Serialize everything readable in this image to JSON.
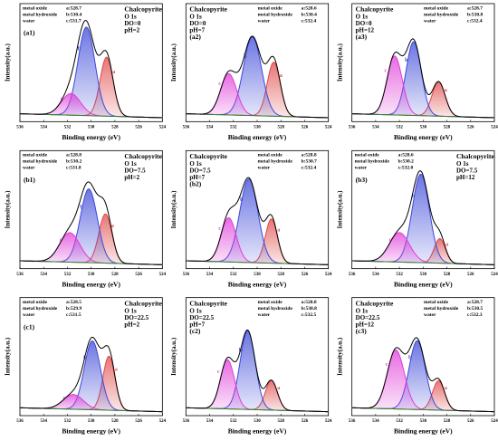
{
  "chart_data": [
    {
      "type": "xps",
      "panel": "(a1)",
      "title": "Chalcopyrite",
      "conditions": [
        "O 1s",
        "DO=0",
        "pH=2"
      ],
      "title_corner": "right",
      "xlabel": "Binding energy (eV)",
      "ylabel": "Intensity(a.u.)",
      "xlim": [
        536,
        524
      ],
      "xticks": [
        536,
        534,
        532,
        530,
        528,
        526,
        524
      ],
      "ylim": [
        0,
        1.2
      ],
      "baseline": [
        0.08,
        0.04
      ],
      "series": [
        {
          "name": "a",
          "species": "metal oxide",
          "label": "a:528.7",
          "center": 528.7,
          "height": 0.6,
          "fwhm": 1.3,
          "color": "#e04848"
        },
        {
          "name": "b",
          "species": "metal hydroxide",
          "label": "b:530.4",
          "center": 530.4,
          "height": 0.9,
          "fwhm": 1.7,
          "color": "#3c48d8"
        },
        {
          "name": "c",
          "species": "water",
          "label": "c:531.7",
          "center": 531.7,
          "height": 0.22,
          "fwhm": 1.9,
          "color": "#e03cd8"
        }
      ]
    },
    {
      "type": "xps",
      "panel": "(a2)",
      "title": "Chalcopyrite",
      "conditions": [
        "O 1s",
        "DO=0",
        "pH=7"
      ],
      "title_corner": "left",
      "xlabel": "Binding energy (eV)",
      "ylabel": "Intensity(a.u.)",
      "xlim": [
        536,
        524
      ],
      "xticks": [
        536,
        534,
        532,
        530,
        528,
        526,
        524
      ],
      "ylim": [
        0,
        1.2
      ],
      "baseline": [
        0.08,
        0.04
      ],
      "series": [
        {
          "name": "a",
          "species": "metal oxide",
          "label": "a:528.6",
          "center": 528.6,
          "height": 0.55,
          "fwhm": 1.3,
          "color": "#e04848"
        },
        {
          "name": "b",
          "species": "metal hydroxide",
          "label": "b:530.4",
          "center": 530.4,
          "height": 0.8,
          "fwhm": 1.8,
          "color": "#3c48d8"
        },
        {
          "name": "c",
          "species": "water",
          "label": "c:532.4",
          "center": 532.4,
          "height": 0.42,
          "fwhm": 1.6,
          "color": "#e03cd8"
        }
      ]
    },
    {
      "type": "xps",
      "panel": "(a3)",
      "title": "Chalcopyrite",
      "conditions": [
        "O 1s",
        "DO=0",
        "pH=12"
      ],
      "title_corner": "left",
      "xlabel": "Binding energy (eV)",
      "ylabel": "Intensity(a.u.)",
      "xlim": [
        536,
        524
      ],
      "xticks": [
        536,
        534,
        532,
        530,
        528,
        526,
        524
      ],
      "ylim": [
        0,
        1.2
      ],
      "baseline": [
        0.08,
        0.04
      ],
      "series": [
        {
          "name": "a",
          "species": "metal oxide",
          "label": "a:528.7",
          "center": 528.7,
          "height": 0.35,
          "fwhm": 1.3,
          "color": "#e04848"
        },
        {
          "name": "b",
          "species": "metal hydroxide",
          "label": "b:530.8",
          "center": 530.8,
          "height": 0.75,
          "fwhm": 1.5,
          "color": "#3c48d8"
        },
        {
          "name": "c",
          "species": "water",
          "label": "c:532.4",
          "center": 532.4,
          "height": 0.6,
          "fwhm": 1.5,
          "color": "#e03cd8"
        }
      ]
    },
    {
      "type": "xps",
      "panel": "(b1)",
      "title": "Chalcopyrite",
      "conditions": [
        "O 1s",
        "DO=7.5",
        "pH=2"
      ],
      "title_corner": "right",
      "xlabel": "Binding energy (eV)",
      "ylabel": "Intensity(a.u.)",
      "xlim": [
        536,
        524
      ],
      "xticks": [
        536,
        534,
        532,
        530,
        528,
        526,
        524
      ],
      "ylim": [
        0,
        1.2
      ],
      "baseline": [
        0.08,
        0.04
      ],
      "series": [
        {
          "name": "a",
          "species": "metal oxide",
          "label": "a:528.8",
          "center": 528.8,
          "height": 0.5,
          "fwhm": 1.3,
          "color": "#e04848"
        },
        {
          "name": "b",
          "species": "metal hydroxide",
          "label": "b:530.2",
          "center": 530.2,
          "height": 0.75,
          "fwhm": 1.7,
          "color": "#3c48d8"
        },
        {
          "name": "c",
          "species": "water",
          "label": "c:531.8",
          "center": 531.8,
          "height": 0.3,
          "fwhm": 2.0,
          "color": "#e03cd8"
        }
      ]
    },
    {
      "type": "xps",
      "panel": "(b2)",
      "title": "Chalcopyrite",
      "conditions": [
        "O 1s",
        "DO=7.5",
        "pH=7"
      ],
      "title_corner": "left",
      "xlabel": "Binding energy (eV)",
      "ylabel": "Intensity(a.u.)",
      "xlim": [
        536,
        524
      ],
      "xticks": [
        536,
        534,
        532,
        530,
        528,
        526,
        524
      ],
      "ylim": [
        0,
        1.2
      ],
      "baseline": [
        0.08,
        0.04
      ],
      "series": [
        {
          "name": "a",
          "species": "metal oxide",
          "label": "a:528.8",
          "center": 528.8,
          "height": 0.45,
          "fwhm": 1.2,
          "color": "#e04848"
        },
        {
          "name": "b",
          "species": "metal hydroxide",
          "label": "b:530.7",
          "center": 530.7,
          "height": 0.85,
          "fwhm": 1.8,
          "color": "#3c48d8"
        },
        {
          "name": "c",
          "species": "water",
          "label": "c:532.4",
          "center": 532.4,
          "height": 0.45,
          "fwhm": 1.5,
          "color": "#e03cd8"
        }
      ]
    },
    {
      "type": "xps",
      "panel": "(b3)",
      "title": "Chalcopyrite",
      "conditions": [
        "O 1s",
        "DO=7.5",
        "pH=12"
      ],
      "title_corner": "right",
      "xlabel": "Binding energy (eV)",
      "ylabel": "Intensity(a.u.)",
      "xlim": [
        536,
        524
      ],
      "xticks": [
        536,
        534,
        532,
        530,
        528,
        526,
        524
      ],
      "ylim": [
        0,
        1.2
      ],
      "baseline": [
        0.08,
        0.04
      ],
      "series": [
        {
          "name": "a",
          "species": "metal oxide",
          "label": "a:528.6",
          "center": 528.6,
          "height": 0.25,
          "fwhm": 1.1,
          "color": "#e04848"
        },
        {
          "name": "b",
          "species": "metal hydroxide",
          "label": "b:530.2",
          "center": 530.2,
          "height": 0.9,
          "fwhm": 1.7,
          "color": "#3c48d8"
        },
        {
          "name": "c",
          "species": "water",
          "label": "c:532.0",
          "center": 532.0,
          "height": 0.3,
          "fwhm": 2.0,
          "color": "#e03cd8"
        }
      ]
    },
    {
      "type": "xps",
      "panel": "(c1)",
      "title": "Chalcopyrite",
      "conditions": [
        "O 1s",
        "DO=22.5",
        "pH=2"
      ],
      "title_corner": "right",
      "xlabel": "Binding energy (eV)",
      "ylabel": "Intensity(a.u.)",
      "xlim": [
        536,
        524
      ],
      "xticks": [
        536,
        534,
        532,
        530,
        528,
        526,
        524
      ],
      "ylim": [
        0,
        1.2
      ],
      "baseline": [
        0.08,
        0.04
      ],
      "series": [
        {
          "name": "a",
          "species": "metal oxide",
          "label": "a:528.5",
          "center": 528.5,
          "height": 0.55,
          "fwhm": 1.2,
          "color": "#e04848"
        },
        {
          "name": "b",
          "species": "metal hydroxide",
          "label": "b:529.9",
          "center": 529.9,
          "height": 0.7,
          "fwhm": 1.6,
          "color": "#3c48d8"
        },
        {
          "name": "c",
          "species": "water",
          "label": "c:531.5",
          "center": 531.5,
          "height": 0.15,
          "fwhm": 2.0,
          "color": "#e03cd8"
        }
      ]
    },
    {
      "type": "xps",
      "panel": "(c2)",
      "title": "Chalcopyrite",
      "conditions": [
        "O 1s",
        "DO=22.5",
        "pH=7"
      ],
      "title_corner": "left",
      "xlabel": "Binding energy (eV)",
      "ylabel": "Intensity(a.u.)",
      "xlim": [
        536,
        524
      ],
      "xticks": [
        536,
        534,
        532,
        530,
        528,
        526,
        524
      ],
      "ylim": [
        0,
        1.2
      ],
      "baseline": [
        0.08,
        0.04
      ],
      "series": [
        {
          "name": "a",
          "species": "metal oxide",
          "label": "a:528.8",
          "center": 528.8,
          "height": 0.3,
          "fwhm": 1.2,
          "color": "#e04848"
        },
        {
          "name": "b",
          "species": "metal hydroxide",
          "label": "b:530.8",
          "center": 530.8,
          "height": 0.8,
          "fwhm": 1.5,
          "color": "#3c48d8"
        },
        {
          "name": "c",
          "species": "water",
          "label": "c:532.5",
          "center": 532.5,
          "height": 0.5,
          "fwhm": 1.4,
          "color": "#e03cd8"
        }
      ]
    },
    {
      "type": "xps",
      "panel": "(c3)",
      "title": "Chalcopyrite",
      "conditions": [
        "O 1s",
        "DO=22.5",
        "pH=12"
      ],
      "title_corner": "left",
      "xlabel": "Binding energy (eV)",
      "ylabel": "Intensity(a.u.)",
      "xlim": [
        536,
        524
      ],
      "xticks": [
        536,
        534,
        532,
        530,
        528,
        526,
        524
      ],
      "ylim": [
        0,
        1.2
      ],
      "baseline": [
        0.08,
        0.04
      ],
      "series": [
        {
          "name": "a",
          "species": "metal oxide",
          "label": "a:528.7",
          "center": 528.7,
          "height": 0.3,
          "fwhm": 1.2,
          "color": "#e04848"
        },
        {
          "name": "b",
          "species": "metal hydroxide",
          "label": "b:530.5",
          "center": 530.5,
          "height": 0.7,
          "fwhm": 1.6,
          "color": "#3c48d8"
        },
        {
          "name": "c",
          "species": "water",
          "label": "c:532.3",
          "center": 532.3,
          "height": 0.6,
          "fwhm": 1.7,
          "color": "#e03cd8"
        }
      ]
    }
  ]
}
